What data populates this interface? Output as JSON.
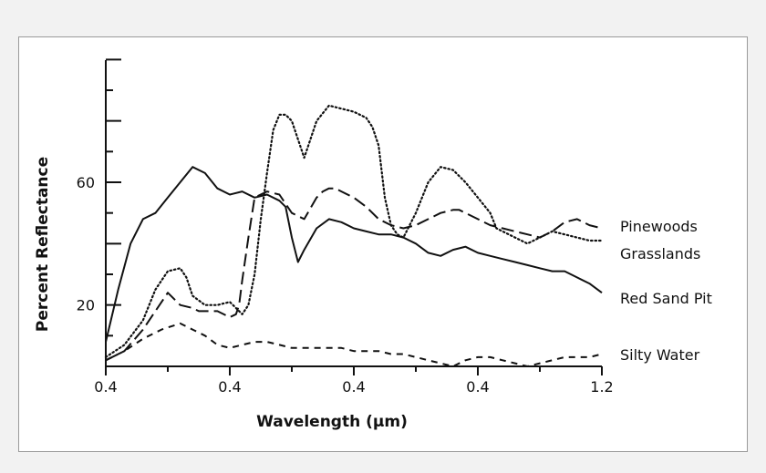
{
  "chart_data": {
    "type": "line",
    "title": "",
    "xlabel": "Wavelength (µm)",
    "ylabel": "Percent Reflectance",
    "x_tick_labels": [
      "0.4",
      "0.4",
      "0.4",
      "0.4",
      "1.2"
    ],
    "y_tick_labels": [
      "20",
      "60"
    ],
    "xlim": [
      0.4,
      1.2
    ],
    "ylim": [
      0,
      100
    ],
    "grid": false,
    "legend": "inline labels at right end of lines",
    "series": [
      {
        "name": "Pinewoods",
        "style": "long-dash",
        "x": [
          0.4,
          0.43,
          0.46,
          0.49,
          0.5,
          0.51,
          0.52,
          0.54,
          0.55,
          0.56,
          0.58,
          0.6,
          0.61,
          0.615,
          0.62,
          0.63,
          0.64,
          0.66,
          0.68,
          0.7,
          0.72,
          0.74,
          0.75,
          0.76,
          0.77,
          0.78,
          0.8,
          0.82,
          0.84,
          0.86,
          0.88,
          0.9,
          0.92,
          0.94,
          0.96,
          0.97,
          0.98,
          1.0,
          1.02,
          1.04,
          1.06,
          1.08,
          1.1,
          1.12,
          1.14,
          1.16,
          1.18,
          1.2
        ],
        "y": [
          2,
          5,
          12,
          21,
          24,
          22,
          20,
          19,
          18,
          18,
          18,
          16,
          17,
          20,
          28,
          42,
          55,
          57,
          56,
          50,
          48,
          55,
          57,
          58,
          58,
          57,
          55,
          52,
          48,
          46,
          45,
          46,
          48,
          50,
          51,
          51,
          50,
          48,
          46,
          45,
          44,
          43,
          42,
          44,
          47,
          48,
          46,
          45
        ]
      },
      {
        "name": "Grasslands",
        "style": "dotted",
        "x": [
          0.4,
          0.43,
          0.46,
          0.48,
          0.5,
          0.52,
          0.53,
          0.54,
          0.56,
          0.58,
          0.6,
          0.61,
          0.62,
          0.63,
          0.64,
          0.65,
          0.66,
          0.67,
          0.68,
          0.69,
          0.7,
          0.72,
          0.74,
          0.76,
          0.78,
          0.8,
          0.82,
          0.83,
          0.84,
          0.85,
          0.86,
          0.87,
          0.88,
          0.9,
          0.92,
          0.94,
          0.96,
          0.98,
          1.0,
          1.02,
          1.03,
          1.04,
          1.06,
          1.08,
          1.1,
          1.12,
          1.14,
          1.16,
          1.18,
          1.2
        ],
        "y": [
          3,
          7,
          15,
          25,
          31,
          32,
          29,
          23,
          20,
          20,
          21,
          19,
          17,
          20,
          30,
          48,
          63,
          77,
          82,
          82,
          80,
          68,
          80,
          85,
          84,
          83,
          81,
          78,
          72,
          55,
          46,
          43,
          42,
          50,
          60,
          65,
          64,
          60,
          55,
          50,
          45,
          44,
          42,
          40,
          42,
          44,
          43,
          42,
          41,
          41
        ]
      },
      {
        "name": "Red Sand Pit",
        "style": "solid",
        "x": [
          0.4,
          0.42,
          0.44,
          0.46,
          0.48,
          0.5,
          0.52,
          0.54,
          0.56,
          0.58,
          0.6,
          0.62,
          0.64,
          0.66,
          0.68,
          0.69,
          0.7,
          0.71,
          0.72,
          0.74,
          0.76,
          0.78,
          0.8,
          0.82,
          0.84,
          0.86,
          0.88,
          0.9,
          0.92,
          0.94,
          0.96,
          0.98,
          1.0,
          1.02,
          1.04,
          1.06,
          1.08,
          1.1,
          1.12,
          1.14,
          1.16,
          1.18,
          1.2
        ],
        "y": [
          8,
          25,
          40,
          48,
          50,
          55,
          60,
          65,
          63,
          58,
          56,
          57,
          55,
          56,
          54,
          52,
          42,
          34,
          38,
          45,
          48,
          47,
          45,
          44,
          43,
          43,
          42,
          40,
          37,
          36,
          38,
          39,
          37,
          36,
          35,
          34,
          33,
          32,
          31,
          31,
          29,
          27,
          24
        ]
      },
      {
        "name": "Silty Water",
        "style": "short-dash",
        "x": [
          0.4,
          0.43,
          0.46,
          0.49,
          0.52,
          0.54,
          0.56,
          0.58,
          0.6,
          0.62,
          0.64,
          0.66,
          0.68,
          0.7,
          0.72,
          0.74,
          0.76,
          0.78,
          0.8,
          0.82,
          0.84,
          0.86,
          0.88,
          0.9,
          0.92,
          0.94,
          0.96,
          0.98,
          1.0,
          1.02,
          1.04,
          1.06,
          1.08,
          1.1,
          1.12,
          1.14,
          1.16,
          1.18,
          1.2
        ],
        "y": [
          2,
          5,
          9,
          12,
          14,
          12,
          10,
          7,
          6,
          7,
          8,
          8,
          7,
          6,
          6,
          6,
          6,
          6,
          5,
          5,
          5,
          4,
          4,
          3,
          2,
          1,
          0,
          2,
          3,
          3,
          2,
          1,
          0,
          1,
          2,
          3,
          3,
          3,
          4
        ]
      }
    ]
  },
  "series_labels": {
    "pinewoods": "Pinewoods",
    "grasslands": "Grasslands",
    "red_sand_pit": "Red Sand Pit",
    "silty_water": "Silty Water"
  }
}
